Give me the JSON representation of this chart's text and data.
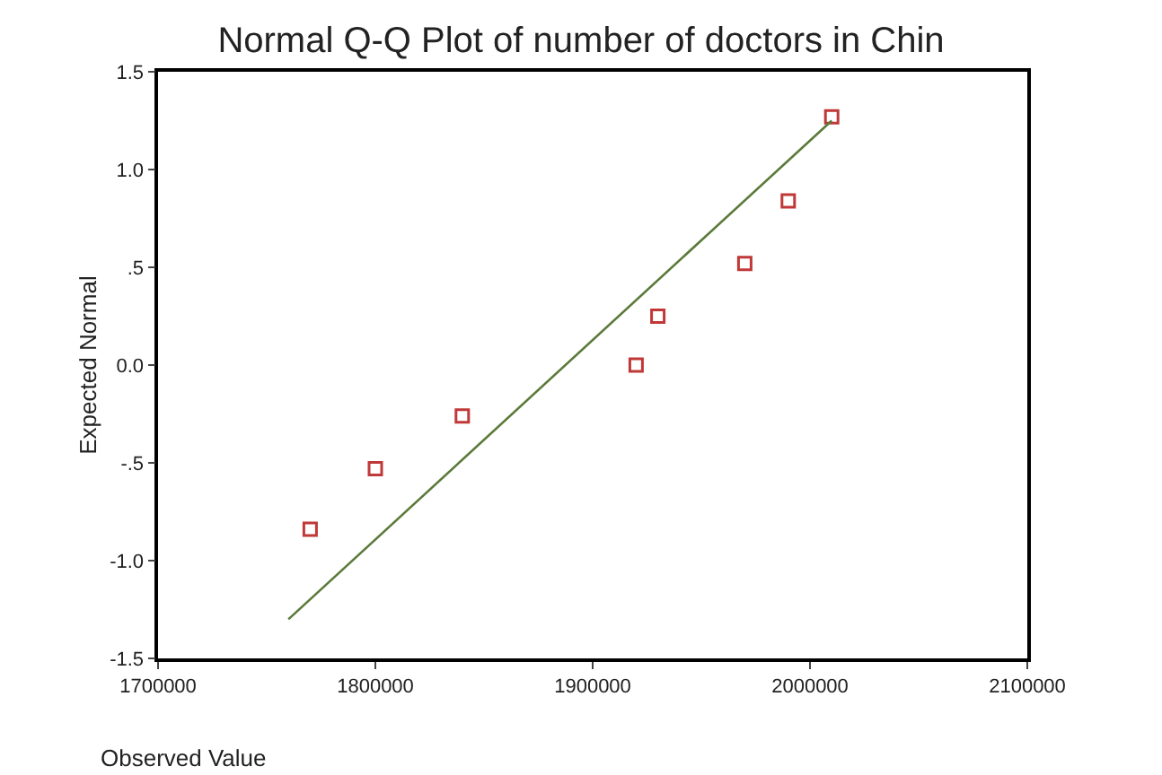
{
  "chart_data": {
    "type": "scatter",
    "title": "Normal Q-Q Plot of number of doctors in Chin",
    "xlabel": "Observed Value",
    "ylabel": "Expected Normal",
    "series": [
      {
        "color": "#c03838",
        "marker": "square",
        "x": [
          1770000,
          1800000,
          1840000,
          1920000,
          1930000,
          1970000,
          1990000,
          2010000
        ],
        "values": [
          -0.84,
          -0.53,
          -0.26,
          0.0,
          0.25,
          0.52,
          0.84,
          1.27
        ]
      },
      {
        "type": "line",
        "color": "#5a7a3a",
        "x": [
          1760000,
          2010000
        ],
        "values": [
          -1.3,
          1.25
        ]
      }
    ],
    "xlim": [
      1700000,
      2100000
    ],
    "xticks": [
      1700000,
      1800000,
      1900000,
      2000000,
      2100000
    ],
    "ylim": [
      -1.5,
      1.5
    ],
    "yticks": [
      {
        "value": 1.5,
        "label": "1.5"
      },
      {
        "value": 1.0,
        "label": "1.0"
      },
      {
        "value": 0.5,
        "label": ".5"
      },
      {
        "value": 0.0,
        "label": "0.0"
      },
      {
        "value": -0.5,
        "label": "-.5"
      },
      {
        "value": -1.0,
        "label": "-1.0"
      },
      {
        "value": -1.5,
        "label": "-1.5"
      }
    ],
    "grid": false
  }
}
